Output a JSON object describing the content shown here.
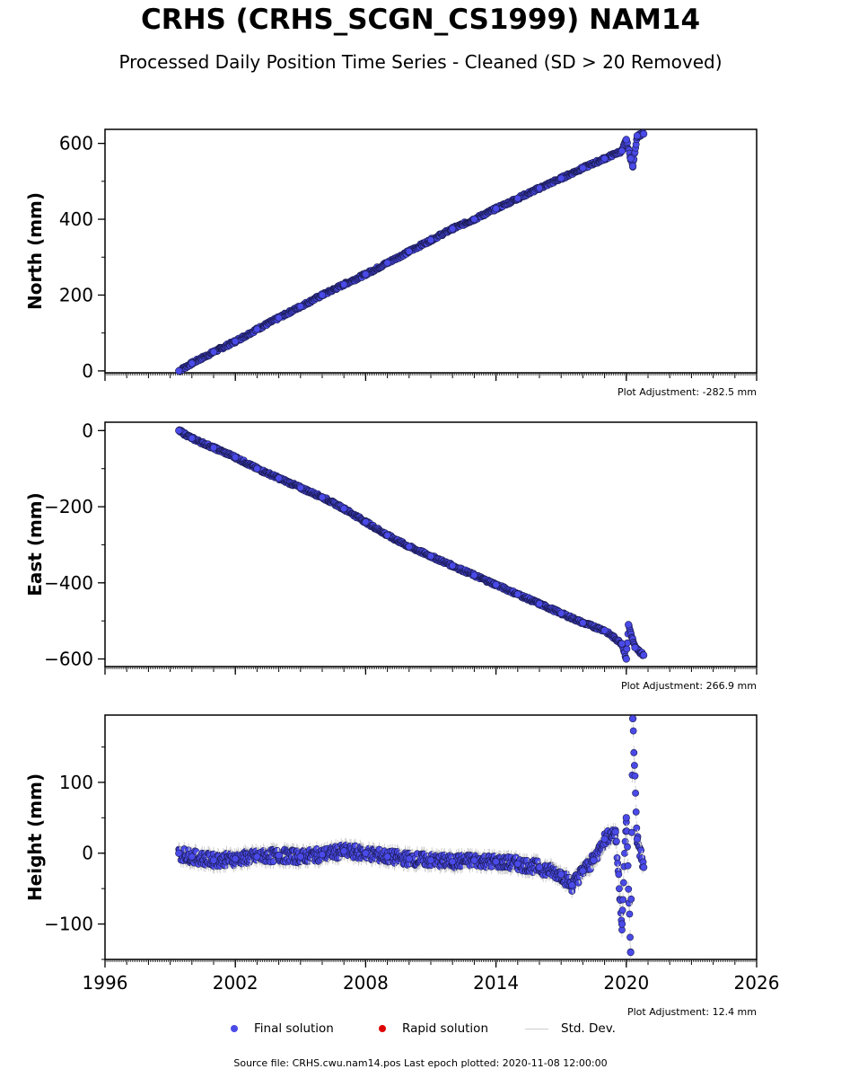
{
  "header": {
    "title": "CRHS (CRHS_SCGN_CS1999) NAM14",
    "subtitle": "Processed Daily Position Time Series - Cleaned (SD > 20 Removed)"
  },
  "legend": {
    "final_label": "Final solution",
    "rapid_label": "Rapid solution",
    "std_label": "Std. Dev.",
    "final_color": "#4a4ae8",
    "rapid_color": "#dd0000",
    "std_color": "#cfcfcf"
  },
  "footer": {
    "source": "Source file: CRHS.cwu.nam14.pos  Last epoch plotted: 2020-11-08 12:00:00"
  },
  "chart_data": [
    {
      "type": "scatter",
      "ylabel": "North (mm)",
      "adjustment": "Plot Adjustment: -282.5 mm",
      "xlim": [
        1996,
        2026
      ],
      "ylim": [
        -5,
        637
      ],
      "yticks": [
        0,
        200,
        400,
        600
      ],
      "xticks": [
        1996,
        2002,
        2008,
        2014,
        2020,
        2026
      ],
      "xtick_labels_visible": false,
      "series": [
        {
          "points": [
            [
              1999.4,
              0
            ],
            [
              2000.0,
              20
            ],
            [
              2001.0,
              50
            ],
            [
              2002.0,
              78
            ],
            [
              2003.0,
              110
            ],
            [
              2004.0,
              140
            ],
            [
              2005.0,
              170
            ],
            [
              2006.0,
              200
            ],
            [
              2007.0,
              228
            ],
            [
              2008.0,
              255
            ],
            [
              2009.0,
              285
            ],
            [
              2010.0,
              315
            ],
            [
              2011.0,
              345
            ],
            [
              2012.0,
              375
            ],
            [
              2013.0,
              400
            ],
            [
              2014.0,
              428
            ],
            [
              2015.0,
              455
            ],
            [
              2016.0,
              482
            ],
            [
              2017.0,
              508
            ],
            [
              2018.0,
              535
            ],
            [
              2019.0,
              560
            ],
            [
              2019.8,
              580
            ],
            [
              2020.0,
              610
            ],
            [
              2020.2,
              560
            ],
            [
              2020.3,
              540
            ],
            [
              2020.5,
              620
            ],
            [
              2020.8,
              625
            ]
          ]
        }
      ]
    },
    {
      "type": "scatter",
      "ylabel": "East (mm)",
      "adjustment": "Plot Adjustment: 266.9 mm",
      "xlim": [
        1996,
        2026
      ],
      "ylim": [
        -620,
        22
      ],
      "yticks": [
        0,
        -200,
        -400,
        -600
      ],
      "xticks": [
        1996,
        2002,
        2008,
        2014,
        2020,
        2026
      ],
      "xtick_labels_visible": false,
      "series": [
        {
          "points": [
            [
              1999.4,
              0
            ],
            [
              2000.0,
              -20
            ],
            [
              2001.0,
              -45
            ],
            [
              2002.0,
              -70
            ],
            [
              2003.0,
              -100
            ],
            [
              2004.0,
              -125
            ],
            [
              2005.0,
              -150
            ],
            [
              2006.0,
              -175
            ],
            [
              2007.0,
              -205
            ],
            [
              2008.0,
              -240
            ],
            [
              2009.0,
              -275
            ],
            [
              2010.0,
              -305
            ],
            [
              2011.0,
              -330
            ],
            [
              2012.0,
              -355
            ],
            [
              2013.0,
              -380
            ],
            [
              2014.0,
              -405
            ],
            [
              2015.0,
              -430
            ],
            [
              2016.0,
              -455
            ],
            [
              2017.0,
              -480
            ],
            [
              2018.0,
              -505
            ],
            [
              2019.0,
              -525
            ],
            [
              2019.8,
              -560
            ],
            [
              2020.0,
              -600
            ],
            [
              2020.1,
              -510
            ],
            [
              2020.4,
              -570
            ],
            [
              2020.8,
              -590
            ]
          ]
        }
      ]
    },
    {
      "type": "scatter",
      "ylabel": "Height (mm)",
      "adjustment": "Plot Adjustment: 12.4 mm",
      "xlim": [
        1996,
        2026
      ],
      "ylim": [
        -150,
        195
      ],
      "yticks": [
        100,
        0,
        -100
      ],
      "xticks": [
        1996,
        2002,
        2008,
        2014,
        2020,
        2026
      ],
      "xtick_labels_visible": true,
      "series": [
        {
          "points": [
            [
              1999.4,
              0
            ],
            [
              2000.0,
              -5
            ],
            [
              2001.0,
              -10
            ],
            [
              2002.0,
              -8
            ],
            [
              2003.0,
              -5
            ],
            [
              2004.0,
              -3
            ],
            [
              2005.0,
              -5
            ],
            [
              2006.0,
              -2
            ],
            [
              2007.0,
              3
            ],
            [
              2008.0,
              0
            ],
            [
              2009.0,
              -5
            ],
            [
              2010.0,
              -8
            ],
            [
              2011.0,
              -10
            ],
            [
              2012.0,
              -12
            ],
            [
              2013.0,
              -10
            ],
            [
              2014.0,
              -12
            ],
            [
              2015.0,
              -15
            ],
            [
              2016.0,
              -20
            ],
            [
              2017.0,
              -30
            ],
            [
              2017.5,
              -45
            ],
            [
              2018.0,
              -25
            ],
            [
              2018.5,
              -10
            ],
            [
              2019.0,
              20
            ],
            [
              2019.5,
              30
            ],
            [
              2019.8,
              -100
            ],
            [
              2020.0,
              50
            ],
            [
              2020.2,
              -140
            ],
            [
              2020.3,
              190
            ],
            [
              2020.5,
              20
            ],
            [
              2020.8,
              -20
            ]
          ]
        }
      ]
    }
  ]
}
